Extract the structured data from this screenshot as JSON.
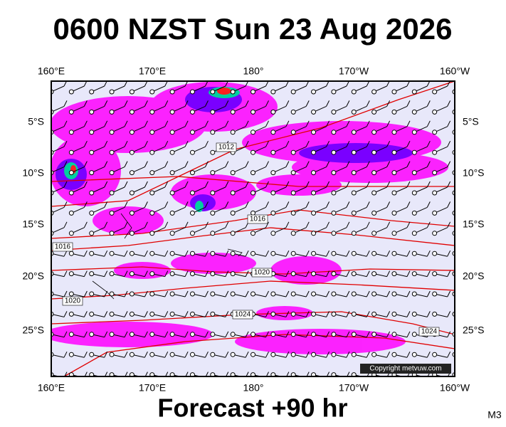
{
  "header": {
    "title": "0600 NZST Sun 23 Aug 2026"
  },
  "map": {
    "lon_labels": [
      "160°E",
      "170°E",
      "180°",
      "170°W",
      "160°W"
    ],
    "lat_labels": [
      "5°S",
      "10°S",
      "15°S",
      "20°S",
      "25°S"
    ],
    "isobar_labels": [
      "1012",
      "1016",
      "1016",
      "1020",
      "1020",
      "1024",
      "1024"
    ],
    "copyright": "Copyright metvuw.com"
  },
  "footer": {
    "forecast": "Forecast +90 hr",
    "code": "M3"
  }
}
